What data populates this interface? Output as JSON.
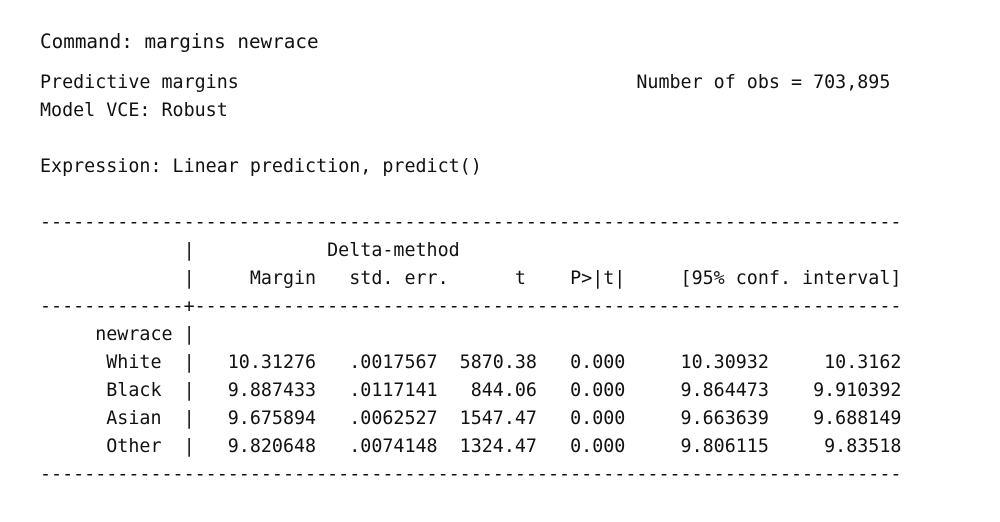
{
  "command_line": "Command: margins newrace",
  "lines": [
    "Predictive margins                                    Number of obs = 703,895",
    "Model VCE: Robust",
    "",
    "Expression: Linear prediction, predict()",
    "",
    "------------------------------------------------------------------------------",
    "             |            Delta-method",
    "             |     Margin   std. err.      t    P>|t|     [95% conf. interval]",
    "-------------+----------------------------------------------------------------",
    "     newrace |",
    "      White  |   10.31276   .0017567  5870.38   0.000     10.30932     10.3162",
    "      Black  |   9.887433   .0117141   844.06   0.000     9.864473    9.910392",
    "      Asian  |   9.675894   .0062527  1547.47   0.000     9.663639    9.688149",
    "      Other  |   9.820648   .0074148  1324.47   0.000     9.806115     9.83518",
    "------------------------------------------------------------------------------"
  ]
}
